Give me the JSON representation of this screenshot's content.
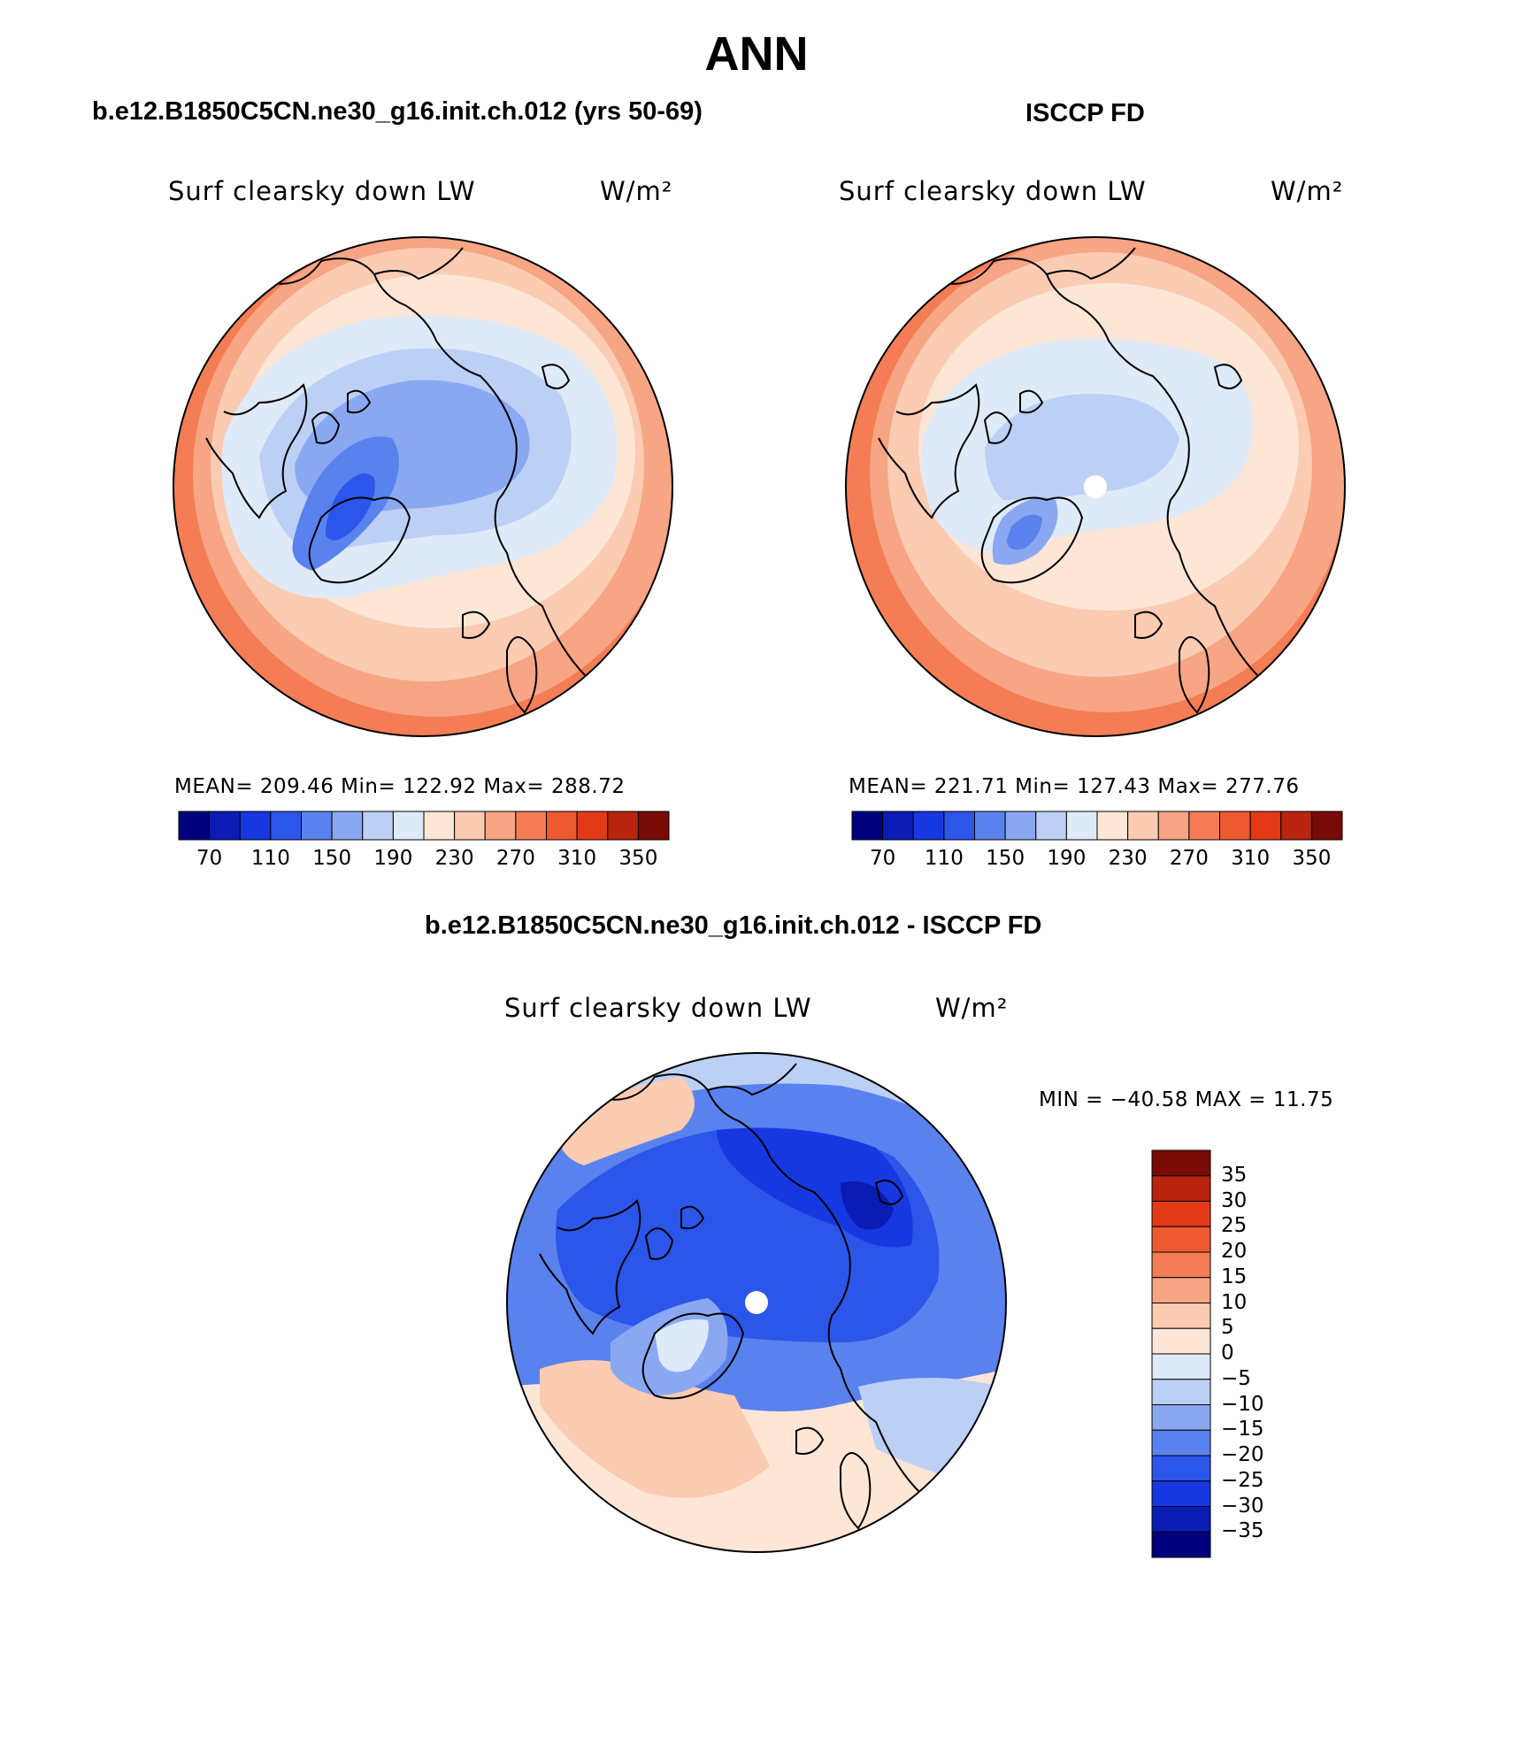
{
  "title": "ANN",
  "panels": [
    {
      "id": "model",
      "title": "b.e12.B1850C5CN.ne30_g16.init.ch.012 (yrs 50-69)",
      "variable": "Surf clearsky down LW",
      "units": "W/m²",
      "stats": "MEAN= 209.46   Min= 122.92   Max= 288.72",
      "colorbar_ticks": [
        "70",
        "110",
        "150",
        "190",
        "230",
        "270",
        "310",
        "350"
      ]
    },
    {
      "id": "obs",
      "title": "ISCCP FD",
      "variable": "Surf clearsky down LW",
      "units": "W/m²",
      "stats": "MEAN= 221.71   Min= 127.43   Max= 277.76",
      "colorbar_ticks": [
        "70",
        "110",
        "150",
        "190",
        "230",
        "270",
        "310",
        "350"
      ]
    },
    {
      "id": "diff",
      "title": "b.e12.B1850C5CN.ne30_g16.init.ch.012 - ISCCP FD",
      "variable": "Surf clearsky down LW",
      "units": "W/m²",
      "stats": "MIN = −40.58 MAX =  11.75",
      "colorbar_ticks": [
        "35",
        "30",
        "25",
        "20",
        "15",
        "10",
        "5",
        "0",
        "−5",
        "−10",
        "−15",
        "−20",
        "−25",
        "−30",
        "−35"
      ]
    }
  ],
  "colors": {
    "abs_scale": [
      "#00007f",
      "#0a1cb4",
      "#1638e0",
      "#2c55ea",
      "#5a82ee",
      "#8aa8f2",
      "#bcd0f6",
      "#dfeaf8",
      "#fde6d6",
      "#fbcbb2",
      "#f7a584",
      "#f47d55",
      "#ee5a30",
      "#e23a16",
      "#b8240e",
      "#7a0a05"
    ],
    "diff_scale": [
      "#00007f",
      "#0a1cb4",
      "#1638e0",
      "#2c55ea",
      "#5a82ee",
      "#8aa8f2",
      "#bcd0f6",
      "#dfeaf8",
      "#fde6d6",
      "#fbcbb2",
      "#f7a584",
      "#f47d55",
      "#ee5a30",
      "#e23a16",
      "#b8240e",
      "#7a0a05"
    ]
  }
}
